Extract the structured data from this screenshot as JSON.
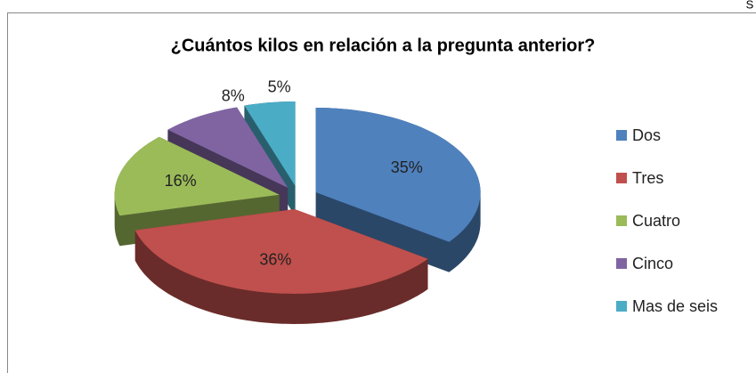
{
  "corner_text": "S",
  "chart_data": {
    "type": "pie3d",
    "title": "¿Cuántos kilos en relación a la pregunta anterior?",
    "categories": [
      "Dos",
      "Tres",
      "Cuatro",
      "Cinco",
      "Mas de seis"
    ],
    "values": [
      35,
      36,
      16,
      8,
      5
    ],
    "value_labels": [
      "35%",
      "36%",
      "16%",
      "8%",
      "5%"
    ],
    "colors": [
      "#4f81bd",
      "#c0504d",
      "#9bbb59",
      "#8064a2",
      "#4bacc6"
    ],
    "legend": "right"
  }
}
